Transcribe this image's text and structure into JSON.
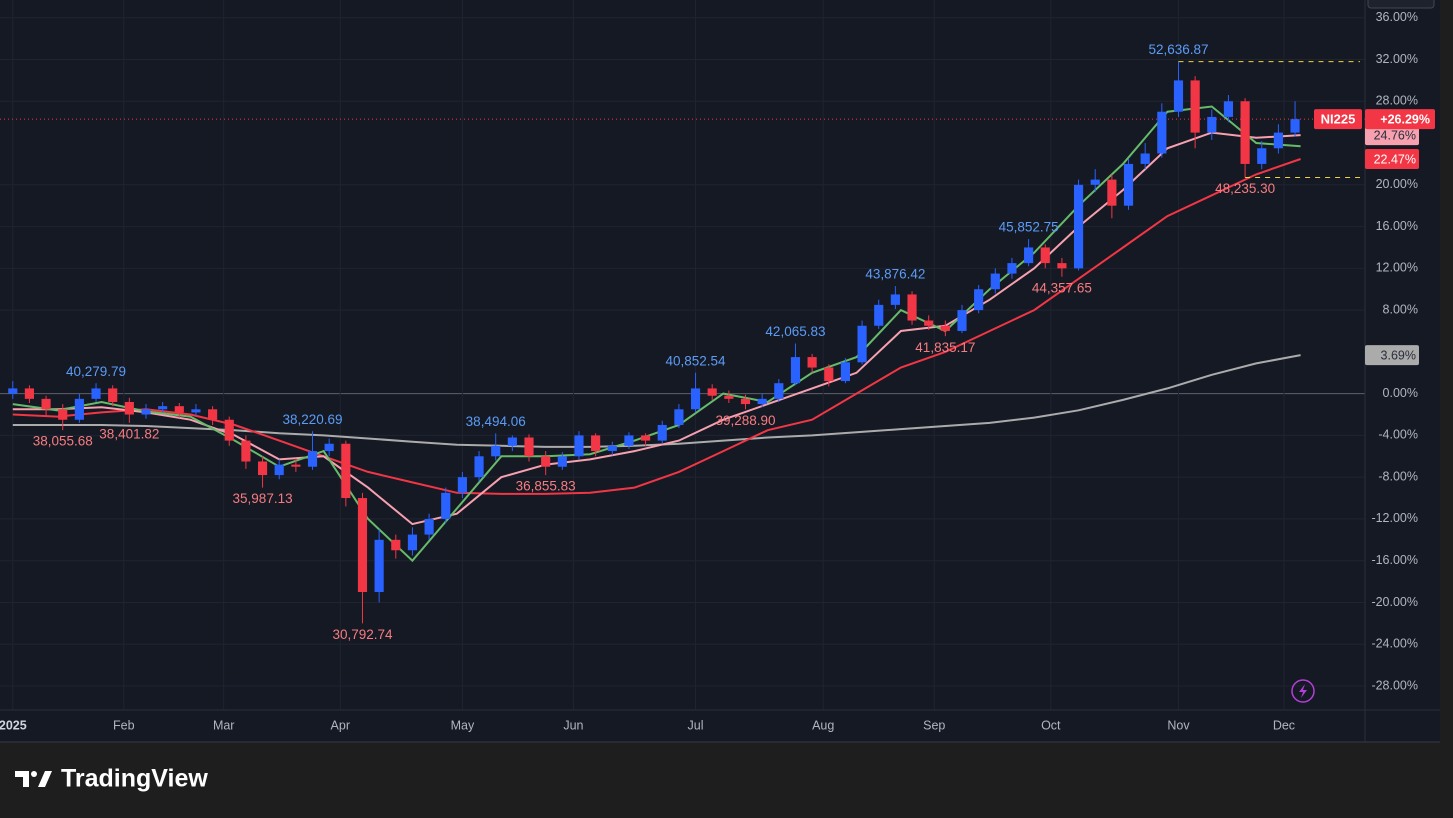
{
  "chart_data": {
    "type": "candlestick",
    "symbol": "NI225",
    "brand": "TradingView",
    "up_color": "#2962ff",
    "down_color": "#f23645",
    "xlim": [
      -2.3,
      243.6
    ],
    "ylim": [
      -30.3,
      37.7
    ],
    "grid": true,
    "xticks": [
      {
        "value": 0,
        "label": "2025"
      },
      {
        "value": 20,
        "label": "Feb"
      },
      {
        "value": 38,
        "label": "Mar"
      },
      {
        "value": 59,
        "label": "Apr"
      },
      {
        "value": 81,
        "label": "May"
      },
      {
        "value": 101,
        "label": "Jun"
      },
      {
        "value": 123,
        "label": "Jul"
      },
      {
        "value": 146,
        "label": "Aug"
      },
      {
        "value": 166,
        "label": "Sep"
      },
      {
        "value": 187,
        "label": "Oct"
      },
      {
        "value": 210,
        "label": "Nov"
      },
      {
        "value": 229,
        "label": "Dec"
      }
    ],
    "yticks": [
      {
        "value": 36,
        "label": "36.00%"
      },
      {
        "value": 32,
        "label": "32.00%"
      },
      {
        "value": 28,
        "label": "28.00%"
      },
      {
        "value": 20,
        "label": "20.00%"
      },
      {
        "value": 16,
        "label": "16.00%"
      },
      {
        "value": 12,
        "label": "12.00%"
      },
      {
        "value": 8,
        "label": "8.00%"
      },
      {
        "value": 0,
        "label": "0.00%"
      },
      {
        "value": -4,
        "label": "-4.00%"
      },
      {
        "value": -8,
        "label": "-8.00%"
      },
      {
        "value": -12,
        "label": "-12.00%"
      },
      {
        "value": -16,
        "label": "-16.00%"
      },
      {
        "value": -20,
        "label": "-20.00%"
      },
      {
        "value": -24,
        "label": "-24.00%"
      },
      {
        "value": -28,
        "label": "-28.00%"
      }
    ],
    "x": [
      0,
      3,
      6,
      9,
      12,
      15,
      18,
      21,
      24,
      27,
      30,
      33,
      36,
      39,
      42,
      45,
      48,
      51,
      54,
      57,
      60,
      63,
      66,
      69,
      72,
      75,
      78,
      81,
      84,
      87,
      90,
      93,
      96,
      99,
      102,
      105,
      108,
      111,
      114,
      117,
      120,
      123,
      126,
      129,
      132,
      135,
      138,
      141,
      144,
      147,
      150,
      153,
      156,
      159,
      162,
      165,
      168,
      171,
      174,
      177,
      180,
      183,
      186,
      189,
      192,
      195,
      198,
      201,
      204,
      207,
      210,
      213,
      216,
      219,
      222,
      225,
      228,
      231
    ],
    "ohlc": [
      [
        0,
        1.2,
        -0.5,
        0.5
      ],
      [
        0.5,
        0.8,
        -0.9,
        -0.5
      ],
      [
        -0.5,
        -0.2,
        -2.2,
        -1.5
      ],
      [
        -1.5,
        -1.0,
        -3.5,
        -2.5
      ],
      [
        -2.5,
        0.0,
        -2.8,
        -0.5
      ],
      [
        -0.5,
        1.0,
        -0.8,
        0.5
      ],
      [
        0.5,
        0.8,
        -1.2,
        -0.8
      ],
      [
        -0.8,
        -0.4,
        -2.8,
        -2.0
      ],
      [
        -2.0,
        -1.0,
        -2.4,
        -1.5
      ],
      [
        -1.5,
        -0.8,
        -1.8,
        -1.2
      ],
      [
        -1.2,
        -0.9,
        -2.3,
        -1.8
      ],
      [
        -1.8,
        -1.0,
        -2.1,
        -1.5
      ],
      [
        -1.5,
        -1.2,
        -3.0,
        -2.5
      ],
      [
        -2.5,
        -2.2,
        -5.0,
        -4.5
      ],
      [
        -4.5,
        -4.0,
        -7.2,
        -6.5
      ],
      [
        -6.5,
        -6.0,
        -9.0,
        -7.8
      ],
      [
        -7.8,
        -6.3,
        -8.2,
        -6.8
      ],
      [
        -6.8,
        -6.2,
        -7.5,
        -7.0
      ],
      [
        -7.0,
        -3.6,
        -7.3,
        -5.5
      ],
      [
        -5.5,
        -4.3,
        -6.0,
        -4.8
      ],
      [
        -4.8,
        -4.5,
        -10.8,
        -10.0
      ],
      [
        -10.0,
        -9.5,
        -22.0,
        -19.0
      ],
      [
        -19.0,
        -13.0,
        -20.0,
        -14.0
      ],
      [
        -14.0,
        -13.5,
        -15.8,
        -15.0
      ],
      [
        -15.0,
        -12.8,
        -15.5,
        -13.5
      ],
      [
        -13.5,
        -11.5,
        -14.0,
        -12.0
      ],
      [
        -12.0,
        -9.0,
        -12.4,
        -9.5
      ],
      [
        -9.5,
        -7.5,
        -10.0,
        -8.0
      ],
      [
        -8.0,
        -5.5,
        -8.4,
        -6.0
      ],
      [
        -6.0,
        -3.8,
        -6.4,
        -5.0
      ],
      [
        -5.0,
        -4.0,
        -5.5,
        -4.2
      ],
      [
        -4.2,
        -3.9,
        -6.5,
        -6.0
      ],
      [
        -6.0,
        -5.5,
        -7.8,
        -7.0
      ],
      [
        -7.0,
        -5.6,
        -7.3,
        -6.0
      ],
      [
        -6.0,
        -3.6,
        -6.3,
        -4.0
      ],
      [
        -4.0,
        -3.8,
        -6.0,
        -5.5
      ],
      [
        -5.5,
        -4.6,
        -5.9,
        -5.0
      ],
      [
        -5.0,
        -3.7,
        -5.3,
        -4.0
      ],
      [
        -4.0,
        -3.8,
        -5.0,
        -4.5
      ],
      [
        -4.5,
        -2.6,
        -4.8,
        -3.0
      ],
      [
        -3.0,
        -1.0,
        -3.3,
        -1.5
      ],
      [
        -1.5,
        2.0,
        -1.8,
        0.5
      ],
      [
        0.5,
        0.9,
        -0.6,
        -0.2
      ],
      [
        -0.2,
        0.3,
        -0.9,
        -0.5
      ],
      [
        -0.5,
        -0.1,
        -1.5,
        -1.0
      ],
      [
        -1.0,
        0.0,
        -1.3,
        -0.5
      ],
      [
        -0.5,
        1.4,
        -0.8,
        1.0
      ],
      [
        1.0,
        4.8,
        0.8,
        3.5
      ],
      [
        3.5,
        3.8,
        2.0,
        2.5
      ],
      [
        2.5,
        2.8,
        0.7,
        1.2
      ],
      [
        1.2,
        3.4,
        1.0,
        3.0
      ],
      [
        3.0,
        7.0,
        2.8,
        6.5
      ],
      [
        6.5,
        9.0,
        6.2,
        8.5
      ],
      [
        8.5,
        10.3,
        8.1,
        9.5
      ],
      [
        9.5,
        9.8,
        6.6,
        7.0
      ],
      [
        7.0,
        7.5,
        6.1,
        6.5
      ],
      [
        6.5,
        7.0,
        5.5,
        6.0
      ],
      [
        6.0,
        8.5,
        5.8,
        8.0
      ],
      [
        8.0,
        10.4,
        7.7,
        10.0
      ],
      [
        10.0,
        12.0,
        9.6,
        11.5
      ],
      [
        11.5,
        13.0,
        11.0,
        12.5
      ],
      [
        12.5,
        14.8,
        12.2,
        14.0
      ],
      [
        14.0,
        14.3,
        12.0,
        12.5
      ],
      [
        12.5,
        13.0,
        11.2,
        12.0
      ],
      [
        12.0,
        20.5,
        11.8,
        20.0
      ],
      [
        20.0,
        21.5,
        19.3,
        20.5
      ],
      [
        20.5,
        21.0,
        16.8,
        18.0
      ],
      [
        18.0,
        22.5,
        17.6,
        22.0
      ],
      [
        22.0,
        24.0,
        21.5,
        23.0
      ],
      [
        23.0,
        27.8,
        22.6,
        27.0
      ],
      [
        27.0,
        31.8,
        26.5,
        30.0
      ],
      [
        30.0,
        30.4,
        23.5,
        25.0
      ],
      [
        25.0,
        27.2,
        24.3,
        26.5
      ],
      [
        26.5,
        28.6,
        26.0,
        28.0
      ],
      [
        28.0,
        28.3,
        20.7,
        22.0
      ],
      [
        22.0,
        24.2,
        21.5,
        23.5
      ],
      [
        23.5,
        25.8,
        23.0,
        25.0
      ],
      [
        25.0,
        28.0,
        24.6,
        26.29
      ]
    ],
    "line_x": [
      0,
      8,
      16,
      24,
      32,
      40,
      48,
      56,
      64,
      72,
      80,
      88,
      96,
      104,
      112,
      120,
      128,
      136,
      144,
      152,
      160,
      168,
      176,
      184,
      192,
      200,
      208,
      216,
      224,
      232
    ],
    "lines": [
      {
        "color": "#ababab",
        "values": [
          -3,
          -3,
          -3,
          -3.1,
          -3.3,
          -3.5,
          -3.8,
          -4,
          -4.3,
          -4.6,
          -4.9,
          -5,
          -5.1,
          -5.1,
          -5,
          -4.8,
          -4.5,
          -4.2,
          -4,
          -3.7,
          -3.4,
          -3.1,
          -2.8,
          -2.3,
          -1.6,
          -0.6,
          0.5,
          1.8,
          2.9,
          3.69
        ],
        "end_label": "3.69%",
        "label_color": "#2a2e39"
      },
      {
        "color": "#f23645",
        "values": [
          -2,
          -2.2,
          -1.8,
          -1.5,
          -2,
          -3,
          -4.5,
          -6,
          -7.5,
          -8.5,
          -9.5,
          -9.6,
          -9.6,
          -9.5,
          -9,
          -7.5,
          -5.5,
          -3.5,
          -2.5,
          0,
          2.5,
          4,
          6,
          8,
          11,
          14,
          17,
          19,
          21,
          22.47
        ],
        "end_label": "22.47%",
        "label_color": "#ffffff"
      },
      {
        "color": "#f7a1b0",
        "values": [
          -1.5,
          -1.5,
          -1.3,
          -1.8,
          -2.5,
          -4,
          -6.3,
          -6,
          -9,
          -12.5,
          -11.5,
          -8,
          -6.8,
          -6.3,
          -5.5,
          -4.5,
          -2.5,
          -1,
          0.5,
          2,
          6,
          6.5,
          9,
          12,
          16,
          19.5,
          23.5,
          25,
          24.5,
          24.76
        ],
        "end_label": "24.76%",
        "label_color": "#2a2e39"
      },
      {
        "color": "#66bb6a",
        "values": [
          -1,
          -1.6,
          -0.8,
          -1.7,
          -2.2,
          -4.5,
          -7,
          -5.5,
          -12,
          -16,
          -11,
          -6,
          -6,
          -5.8,
          -4.5,
          -3,
          0,
          -0.8,
          2,
          3.5,
          8,
          6,
          10,
          13.5,
          18,
          22,
          27,
          27.5,
          24,
          23.7
        ]
      }
    ],
    "price_label": {
      "value": 26.29,
      "label": "+26.29%"
    },
    "annotations": [
      {
        "text": "40,279.79",
        "x": 15,
        "y": 1.0,
        "color": "#5b9cf6"
      },
      {
        "text": "38,055.68",
        "x": 9,
        "y": -3.5,
        "color": "#f77c80"
      },
      {
        "text": "38,401.82",
        "x": 21,
        "y": -2.8,
        "color": "#f77c80"
      },
      {
        "text": "35,987.13",
        "x": 45,
        "y": -9.0,
        "color": "#f77c80"
      },
      {
        "text": "38,220.69",
        "x": 54,
        "y": -3.6,
        "color": "#5b9cf6"
      },
      {
        "text": "30,792.74",
        "x": 63,
        "y": -22.0,
        "color": "#f77c80"
      },
      {
        "text": "38,494.06",
        "x": 87,
        "y": -3.8,
        "color": "#5b9cf6"
      },
      {
        "text": "36,855.83",
        "x": 96,
        "y": -7.8,
        "color": "#f77c80"
      },
      {
        "text": "40,852.54",
        "x": 123,
        "y": 2.0,
        "color": "#5b9cf6"
      },
      {
        "text": "39,288.90",
        "x": 132,
        "y": -1.5,
        "color": "#f77c80"
      },
      {
        "text": "42,065.83",
        "x": 141,
        "y": 4.8,
        "color": "#5b9cf6"
      },
      {
        "text": "43,876.42",
        "x": 159,
        "y": 10.3,
        "color": "#5b9cf6"
      },
      {
        "text": "41,835.17",
        "x": 168,
        "y": 5.5,
        "color": "#f77c80"
      },
      {
        "text": "45,852.75",
        "x": 183,
        "y": 14.8,
        "color": "#5b9cf6"
      },
      {
        "text": "44,357.65",
        "x": 189,
        "y": 11.2,
        "color": "#f77c80"
      },
      {
        "text": "52,636.87",
        "x": 210,
        "y": 31.8,
        "color": "#5b9cf6",
        "dashed_line": true
      },
      {
        "text": "48,235.30",
        "x": 222,
        "y": 20.7,
        "color": "#f77c80",
        "dashed_line": true
      }
    ]
  }
}
